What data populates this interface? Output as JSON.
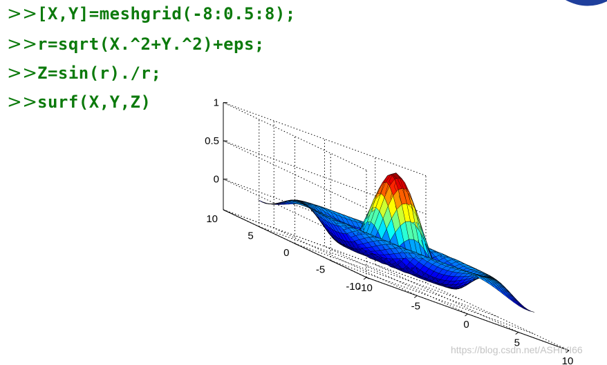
{
  "command_window": {
    "prompt_glyph": ">>",
    "lines": [
      "[X,Y]=meshgrid(-8:0.5:8);",
      "r=sqrt(X.^2+Y.^2)+eps;",
      "Z=sin(r)./r;",
      "surf(X,Y,Z)"
    ]
  },
  "watermark": "https://blog.csdn.net/ASHIYI66",
  "chart_data": {
    "type": "surface",
    "function": "Z=sin(r)./r",
    "x_range": [
      -8,
      8
    ],
    "y_range": [
      -8,
      8
    ],
    "step": 0.5,
    "x_ticks": [
      "-10",
      "-5",
      "0",
      "5",
      "10"
    ],
    "y_ticks": [
      "-10",
      "-5",
      "0",
      "5",
      "10"
    ],
    "z_ticks": [
      "0",
      "0.5",
      "1"
    ],
    "xlim": [
      -10,
      10
    ],
    "ylim": [
      -10,
      10
    ],
    "zlim": [
      -0.4,
      1
    ],
    "grid": true,
    "colormap": "jet"
  }
}
